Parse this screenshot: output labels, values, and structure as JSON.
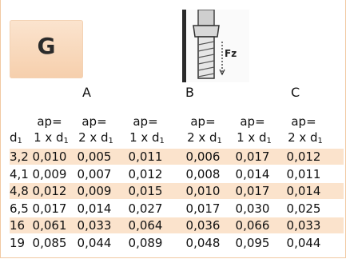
{
  "logo": {
    "letter": "G"
  },
  "tool_image": {
    "label": "Fz"
  },
  "sections": [
    "A",
    "B",
    "C"
  ],
  "header_top": [
    "ap=",
    "ap=",
    "ap=",
    "ap=",
    "ap=",
    "ap="
  ],
  "header_bottom": [
    "1 x d",
    "2 x d",
    "1 x d",
    "2 x d",
    "1 x d",
    "2 x d"
  ],
  "header_bottom_sub": "1",
  "first_col_label": "d",
  "first_col_sub": "1",
  "rows": [
    {
      "d": "3,2",
      "v": [
        "0,010",
        "0,005",
        "0,011",
        "0,006",
        "0,017",
        "0,012"
      ]
    },
    {
      "d": "4,1",
      "v": [
        "0,009",
        "0,007",
        "0,012",
        "0,008",
        "0,014",
        "0,011"
      ]
    },
    {
      "d": "4,8",
      "v": [
        "0,012",
        "0,009",
        "0,015",
        "0,010",
        "0,017",
        "0,014"
      ]
    },
    {
      "d": "6,5",
      "v": [
        "0,017",
        "0,014",
        "0,027",
        "0,017",
        "0,030",
        "0,025"
      ]
    },
    {
      "d": "16",
      "v": [
        "0,061",
        "0,033",
        "0,064",
        "0,036",
        "0,066",
        "0,033"
      ]
    },
    {
      "d": "19",
      "v": [
        "0,085",
        "0,044",
        "0,089",
        "0,048",
        "0,095",
        "0,044"
      ]
    }
  ]
}
